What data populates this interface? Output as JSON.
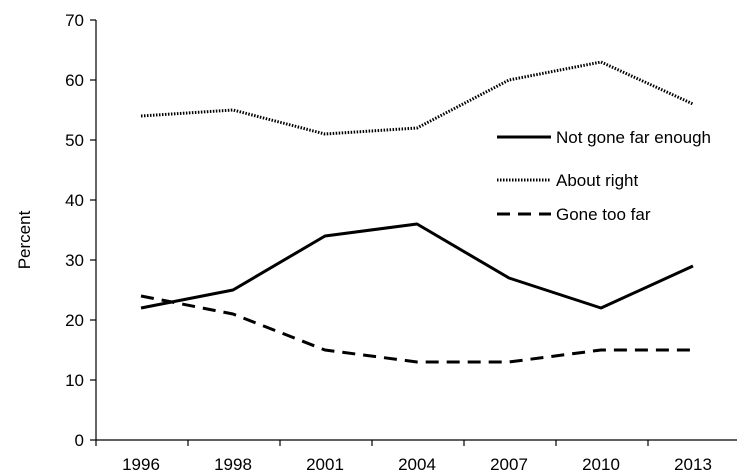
{
  "chart_data": {
    "type": "line",
    "title": "",
    "xlabel": "",
    "ylabel": "Percent",
    "x": [
      "1996",
      "1998",
      "2001",
      "2004",
      "2007",
      "2010",
      "2013"
    ],
    "ylim": [
      0,
      70
    ],
    "yticks": [
      0,
      10,
      20,
      30,
      40,
      50,
      60,
      70
    ],
    "grid": false,
    "legend_position": "right",
    "series": [
      {
        "name": "Not gone far enough",
        "style": "solid",
        "values": [
          22,
          25,
          34,
          36,
          27,
          22,
          29
        ]
      },
      {
        "name": "About right",
        "style": "dotted",
        "values": [
          54,
          55,
          51,
          52,
          60,
          63,
          56
        ]
      },
      {
        "name": "Gone too far",
        "style": "dashed",
        "values": [
          24,
          21,
          15,
          13,
          13,
          15,
          15
        ]
      }
    ]
  }
}
